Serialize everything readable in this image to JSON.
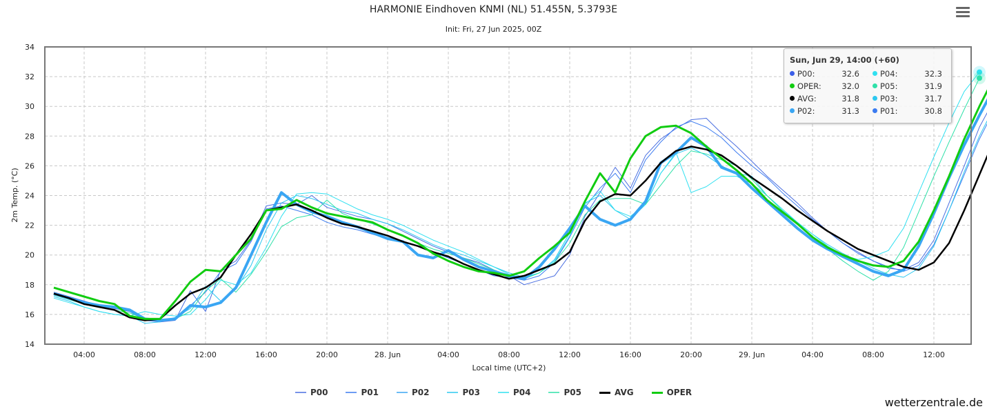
{
  "header": {
    "title": "HARMONIE Eindhoven KNMI (NL) 51.455N, 5.3793E",
    "subtitle": "Init: Fri, 27 Jun 2025, 00Z",
    "menu_icon": "hamburger-menu-icon"
  },
  "tooltip": {
    "heading": "Sun, Jun 29, 14:00 (+60)",
    "rows": [
      {
        "name": "P00:",
        "value": "32.6",
        "color": "#3b5ee8"
      },
      {
        "name": "OPER:",
        "value": "32.0",
        "color": "#11cc11"
      },
      {
        "name": "AVG:",
        "value": "31.8",
        "color": "#000000"
      },
      {
        "name": "P02:",
        "value": "31.3",
        "color": "#3aa6f3"
      },
      {
        "name": "P04:",
        "value": "32.3",
        "color": "#2fe0f0"
      },
      {
        "name": "P05:",
        "value": "31.9",
        "color": "#2ee0a8"
      },
      {
        "name": "P03:",
        "value": "31.7",
        "color": "#2cc8f0"
      },
      {
        "name": "P01:",
        "value": "30.8",
        "color": "#3b7bf0"
      }
    ]
  },
  "credit": "wetterzentrale.de",
  "chart_data": {
    "type": "line",
    "title": "HARMONIE Eindhoven KNMI (NL) 51.455N, 5.3793E",
    "subtitle": "Init: Fri, 27 Jun 2025, 00Z",
    "xlabel": "Local time (UTC+2)",
    "ylabel": "2m Temp. (°C)",
    "ylim": [
      14,
      34
    ],
    "yticks": [
      14,
      16,
      18,
      20,
      22,
      24,
      26,
      28,
      30,
      32,
      34
    ],
    "x_hours_from": "27 Jun 00:00 local",
    "xlim_hours": [
      1.4,
      62.5
    ],
    "xticks": [
      {
        "h": 4,
        "label": "04:00"
      },
      {
        "h": 8,
        "label": "08:00"
      },
      {
        "h": 12,
        "label": "12:00"
      },
      {
        "h": 16,
        "label": "16:00"
      },
      {
        "h": 20,
        "label": "20:00"
      },
      {
        "h": 24,
        "label": "28. Jun"
      },
      {
        "h": 28,
        "label": "04:00"
      },
      {
        "h": 32,
        "label": "08:00"
      },
      {
        "h": 36,
        "label": "12:00"
      },
      {
        "h": 40,
        "label": "16:00"
      },
      {
        "h": 44,
        "label": "20:00"
      },
      {
        "h": 48,
        "label": "29. Jun"
      },
      {
        "h": 52,
        "label": "04:00"
      },
      {
        "h": 56,
        "label": "08:00"
      },
      {
        "h": 60,
        "label": "12:00"
      }
    ],
    "grid": true,
    "legend_position": "bottom",
    "x_start_hour": 2,
    "series": [
      {
        "name": "P00",
        "color": "#4a6ee0",
        "width": 1,
        "values": [
          17.5,
          17.2,
          16.9,
          16.6,
          16.4,
          16.2,
          15.6,
          15.5,
          15.6,
          17.6,
          16.2,
          19.0,
          19.6,
          21.0,
          23.3,
          23.5,
          23.4,
          24.0,
          23.2,
          22.9,
          22.6,
          22.4,
          22.1,
          21.6,
          21.1,
          20.6,
          20.2,
          19.8,
          19.5,
          19.0,
          18.6,
          18.0,
          18.3,
          18.6,
          20.0,
          22.6,
          24.2,
          25.9,
          24.5,
          26.7,
          27.8,
          28.5,
          29.1,
          29.2,
          28.2,
          27.3,
          26.3,
          25.3,
          24.4,
          23.5,
          22.5,
          21.6,
          20.8,
          20.2,
          19.6,
          19.1,
          19.0,
          19.5,
          21.0,
          23.5,
          26.0,
          28.6,
          30.5,
          32.6
        ]
      },
      {
        "name": "P01",
        "color": "#3b7bf0",
        "width": 1,
        "values": [
          17.4,
          17.1,
          16.8,
          16.6,
          16.5,
          16.3,
          15.7,
          15.6,
          15.7,
          16.6,
          17.5,
          18.9,
          19.4,
          20.9,
          23.1,
          23.3,
          23.0,
          22.7,
          22.2,
          21.9,
          21.7,
          21.4,
          21.1,
          20.9,
          20.6,
          20.2,
          19.8,
          19.4,
          19.0,
          18.6,
          18.5,
          18.3,
          18.6,
          19.5,
          21.2,
          23.2,
          24.5,
          25.5,
          24.2,
          26.4,
          27.6,
          28.6,
          29.0,
          28.6,
          27.9,
          26.9,
          26.0,
          25.2,
          24.2,
          23.3,
          22.4,
          21.6,
          20.8,
          20.1,
          19.6,
          19.2,
          18.9,
          19.3,
          20.7,
          23.0,
          25.4,
          27.8,
          29.8,
          30.8
        ]
      },
      {
        "name": "P02",
        "color": "#3aa6f3",
        "width": 4,
        "values": [
          17.4,
          17.1,
          16.8,
          16.6,
          16.5,
          16.3,
          15.7,
          15.6,
          15.7,
          16.6,
          16.5,
          16.8,
          17.8,
          20.0,
          22.2,
          24.2,
          23.4,
          22.9,
          22.6,
          22.2,
          21.9,
          21.5,
          21.1,
          20.9,
          20.0,
          19.8,
          20.3,
          19.7,
          19.2,
          18.9,
          18.6,
          18.4,
          19.2,
          20.4,
          21.8,
          23.3,
          22.4,
          22.0,
          22.4,
          23.6,
          26.2,
          26.9,
          27.9,
          27.3,
          25.9,
          25.5,
          24.5,
          23.6,
          22.7,
          21.8,
          21.0,
          20.4,
          19.9,
          19.4,
          18.9,
          18.6,
          19.0,
          20.6,
          22.8,
          25.2,
          27.4,
          29.4,
          31.3
        ]
      },
      {
        "name": "P03",
        "color": "#2cc8f0",
        "width": 1,
        "values": [
          17.2,
          16.9,
          16.5,
          16.2,
          16.0,
          15.9,
          15.4,
          15.5,
          15.8,
          16.4,
          17.9,
          16.9,
          17.7,
          19.3,
          21.7,
          23.5,
          24.0,
          23.8,
          23.4,
          23.0,
          22.8,
          22.4,
          22.1,
          21.7,
          21.2,
          20.7,
          20.3,
          20.0,
          19.6,
          19.2,
          18.8,
          18.5,
          18.8,
          19.7,
          21.5,
          23.5,
          24.0,
          23.0,
          22.4,
          23.4,
          25.5,
          26.8,
          27.2,
          26.7,
          26.0,
          25.5,
          25.3,
          24.0,
          23.0,
          22.2,
          21.4,
          20.7,
          20.1,
          19.6,
          19.1,
          18.7,
          18.5,
          19.1,
          20.6,
          23.0,
          25.6,
          28.0,
          30.0,
          31.7
        ]
      },
      {
        "name": "P04",
        "color": "#2fe0f0",
        "width": 1,
        "values": [
          17.1,
          16.8,
          16.5,
          16.2,
          16.0,
          15.9,
          16.2,
          16.0,
          15.9,
          16.0,
          17.0,
          18.3,
          18.0,
          18.8,
          20.5,
          22.6,
          24.1,
          24.2,
          24.1,
          23.6,
          23.1,
          22.7,
          22.4,
          22.0,
          21.5,
          21.0,
          20.6,
          20.2,
          19.7,
          19.2,
          18.7,
          18.4,
          18.8,
          19.6,
          21.3,
          23.4,
          24.3,
          23.0,
          22.6,
          23.4,
          25.5,
          26.9,
          24.2,
          24.6,
          25.3,
          25.3,
          24.8,
          24.0,
          23.1,
          22.2,
          21.4,
          20.6,
          20.0,
          19.7,
          19.9,
          20.3,
          21.8,
          24.2,
          26.6,
          28.9,
          31.0,
          32.3
        ]
      },
      {
        "name": "P05",
        "color": "#2ee0a8",
        "width": 1,
        "values": [
          17.3,
          17.0,
          16.7,
          16.5,
          16.3,
          16.1,
          15.7,
          15.6,
          15.7,
          16.2,
          17.6,
          18.4,
          17.5,
          18.7,
          20.2,
          21.9,
          22.5,
          22.7,
          23.7,
          22.8,
          22.4,
          22.1,
          21.7,
          21.3,
          20.8,
          20.4,
          20.1,
          19.8,
          19.4,
          19.0,
          18.6,
          18.4,
          18.8,
          19.5,
          20.8,
          22.7,
          23.7,
          23.8,
          23.8,
          23.4,
          24.7,
          26.0,
          27.0,
          26.8,
          26.4,
          26.0,
          25.1,
          24.0,
          23.0,
          22.1,
          21.2,
          20.4,
          19.6,
          18.9,
          18.3,
          18.9,
          20.5,
          22.9,
          25.3,
          27.6,
          29.8,
          31.9
        ]
      },
      {
        "name": "AVG",
        "color": "#000000",
        "width": 2.5,
        "values": [
          17.4,
          17.1,
          16.7,
          16.5,
          16.3,
          15.8,
          15.6,
          15.7,
          16.6,
          17.4,
          17.8,
          18.5,
          20.0,
          21.4,
          23.0,
          23.2,
          23.4,
          23.0,
          22.5,
          22.1,
          21.9,
          21.6,
          21.3,
          20.9,
          20.6,
          20.2,
          19.9,
          19.4,
          19.0,
          18.7,
          18.4,
          18.6,
          19.0,
          19.4,
          20.2,
          22.3,
          23.6,
          24.1,
          24.0,
          25.0,
          26.2,
          27.0,
          27.3,
          27.1,
          26.7,
          26.0,
          25.2,
          24.5,
          23.8,
          23.0,
          22.3,
          21.6,
          21.0,
          20.4,
          20.0,
          19.6,
          19.2,
          19.0,
          19.5,
          20.8,
          23.0,
          25.4,
          27.8,
          29.9,
          31.8
        ]
      },
      {
        "name": "OPER",
        "color": "#11cc11",
        "width": 3,
        "values": [
          17.8,
          17.5,
          17.2,
          16.9,
          16.7,
          15.9,
          15.7,
          15.7,
          16.9,
          18.2,
          19.0,
          18.9,
          20.0,
          21.1,
          23.0,
          23.1,
          23.7,
          23.2,
          22.8,
          22.6,
          22.4,
          22.2,
          21.7,
          21.3,
          20.8,
          20.1,
          19.6,
          19.2,
          18.9,
          18.8,
          18.6,
          18.9,
          19.8,
          20.6,
          21.5,
          23.6,
          25.5,
          24.2,
          26.5,
          28.0,
          28.6,
          28.7,
          28.2,
          27.3,
          26.5,
          25.7,
          24.8,
          23.7,
          22.9,
          22.1,
          21.2,
          20.5,
          20.0,
          19.6,
          19.3,
          19.2,
          19.6,
          20.9,
          23.0,
          25.3,
          27.8,
          30.0,
          32.0
        ]
      }
    ]
  }
}
